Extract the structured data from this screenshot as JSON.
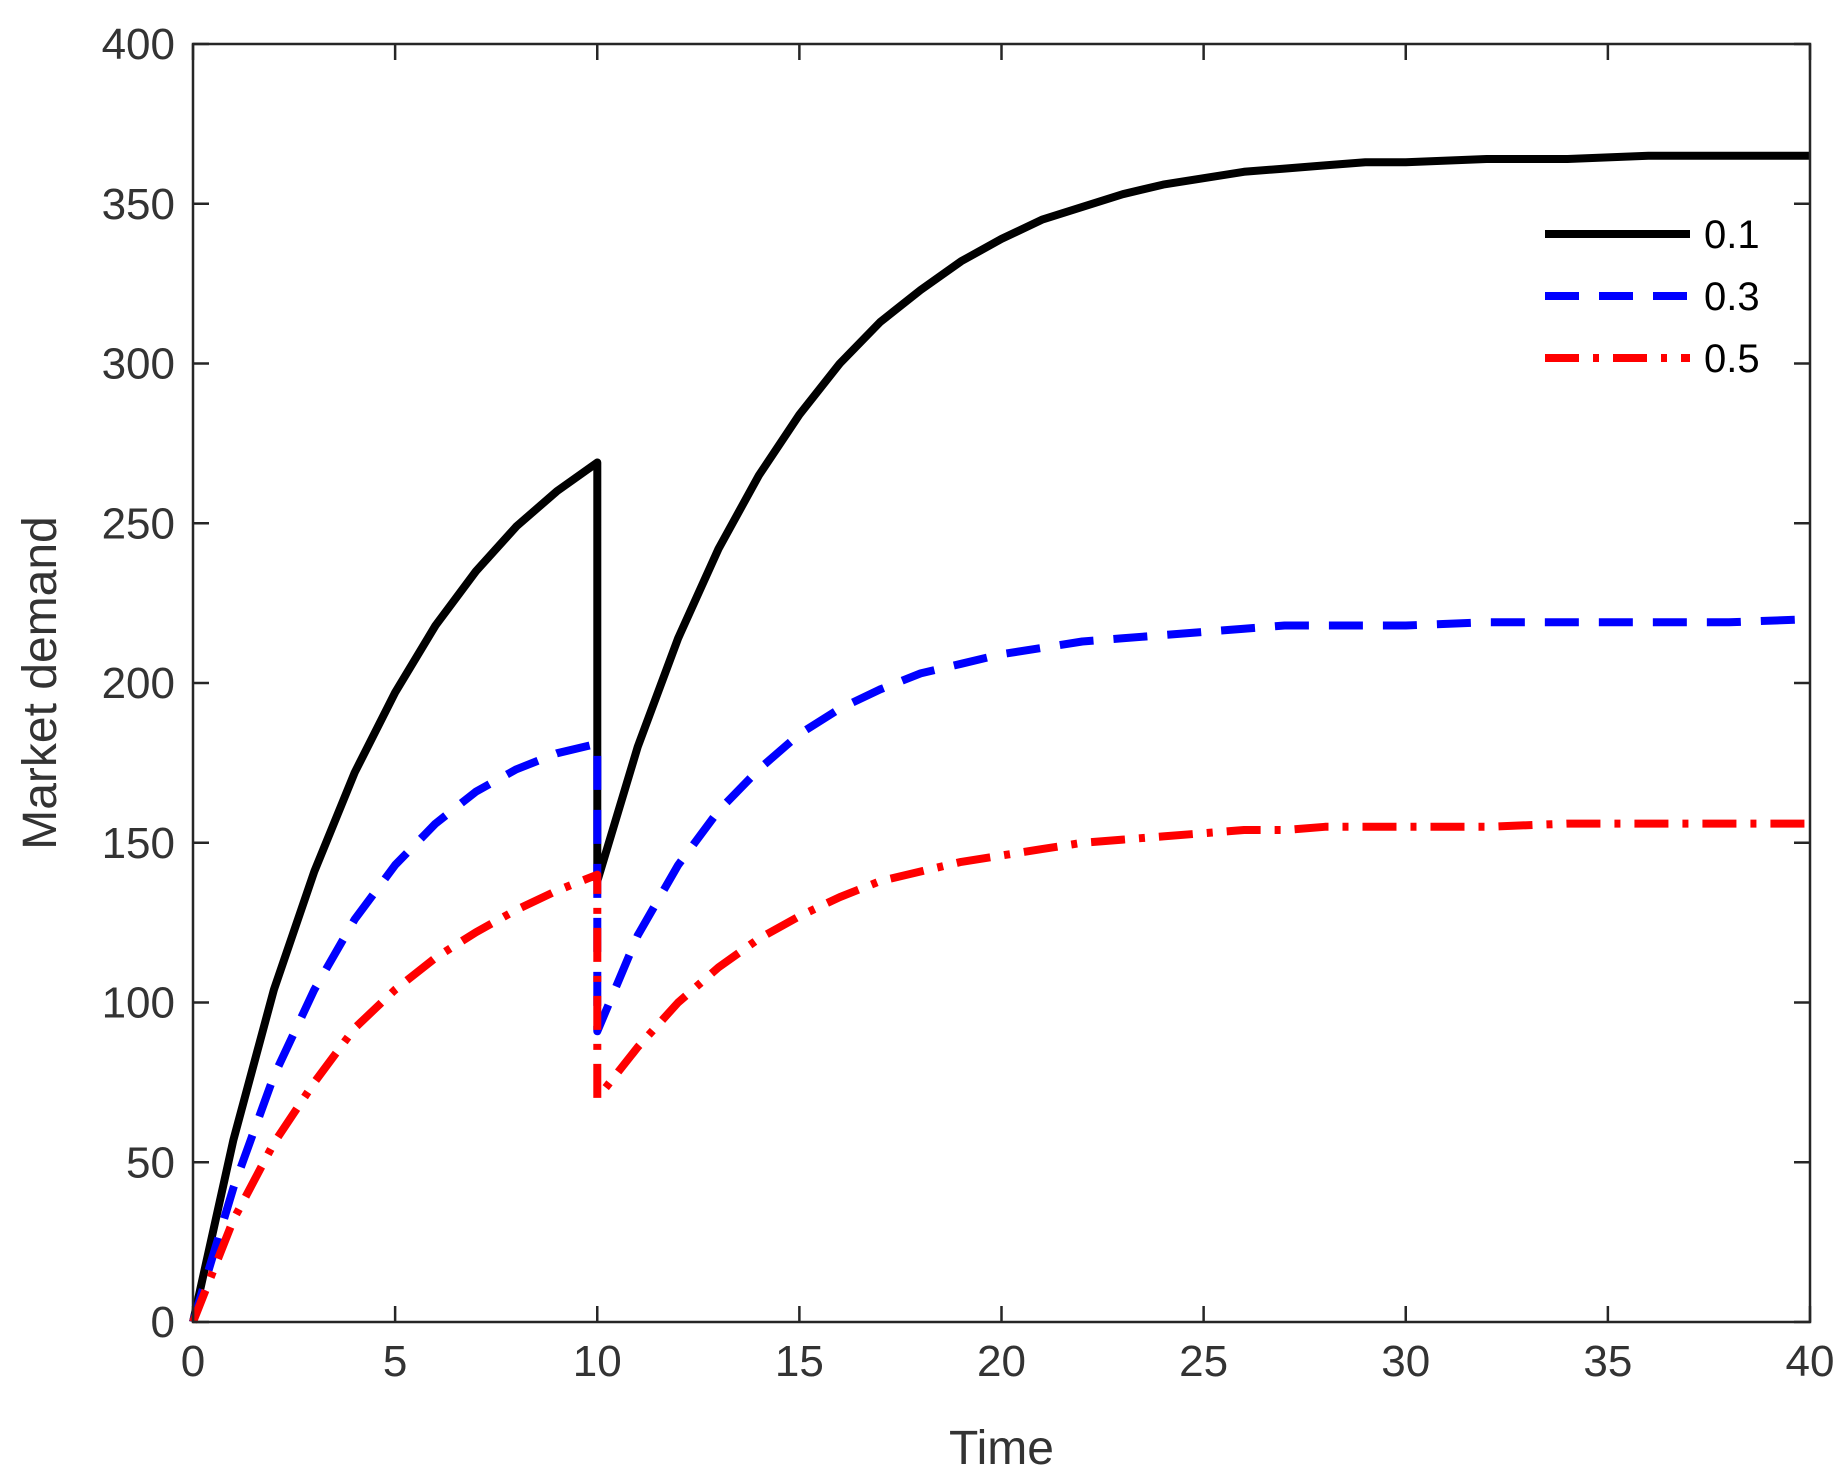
{
  "chart_data": {
    "type": "line",
    "xlabel": "Time",
    "ylabel": "Market demand",
    "xlim": [
      0,
      40
    ],
    "ylim": [
      0,
      400
    ],
    "x_ticks": [
      0,
      5,
      10,
      15,
      20,
      25,
      30,
      35,
      40
    ],
    "y_ticks": [
      0,
      50,
      100,
      150,
      200,
      250,
      300,
      350,
      400
    ],
    "grid": false,
    "legend_position": "top-right",
    "series": [
      {
        "name": "0.1",
        "color": "#000000",
        "style": "solid",
        "x": [
          0,
          1,
          2,
          3,
          4,
          5,
          6,
          7,
          8,
          9,
          10,
          10,
          11,
          12,
          13,
          14,
          15,
          16,
          17,
          18,
          19,
          20,
          21,
          22,
          23,
          24,
          25,
          26,
          27,
          28,
          29,
          30,
          32,
          34,
          36,
          38,
          40
        ],
        "y": [
          0,
          57,
          104,
          141,
          172,
          197,
          218,
          235,
          249,
          260,
          269,
          138,
          180,
          214,
          242,
          265,
          284,
          300,
          313,
          323,
          332,
          339,
          345,
          349,
          353,
          356,
          358,
          360,
          361,
          362,
          363,
          363,
          364,
          364,
          365,
          365,
          365
        ]
      },
      {
        "name": "0.3",
        "color": "#0000ff",
        "style": "dashed",
        "x": [
          0,
          1,
          2,
          3,
          4,
          5,
          6,
          7,
          8,
          9,
          10,
          10,
          11,
          12,
          13,
          14,
          15,
          16,
          17,
          18,
          19,
          20,
          21,
          22,
          23,
          24,
          25,
          26,
          27,
          28,
          29,
          30,
          32,
          34,
          36,
          38,
          40
        ],
        "y": [
          0,
          42,
          77,
          104,
          126,
          143,
          156,
          166,
          173,
          178,
          181,
          91,
          121,
          143,
          160,
          173,
          184,
          192,
          198,
          203,
          206,
          209,
          211,
          213,
          214,
          215,
          216,
          217,
          218,
          218,
          218,
          218,
          219,
          219,
          219,
          219,
          220
        ]
      },
      {
        "name": "0.5",
        "color": "#ff0000",
        "style": "dash-dot",
        "x": [
          0,
          1,
          2,
          3,
          4,
          5,
          6,
          7,
          8,
          9,
          10,
          10,
          11,
          12,
          13,
          14,
          15,
          16,
          17,
          18,
          19,
          20,
          21,
          22,
          23,
          24,
          25,
          26,
          27,
          28,
          29,
          30,
          32,
          34,
          36,
          38,
          40
        ],
        "y": [
          0,
          32,
          56,
          75,
          92,
          104,
          114,
          122,
          129,
          135,
          140,
          70,
          86,
          100,
          111,
          120,
          127,
          133,
          138,
          141,
          144,
          146,
          148,
          150,
          151,
          152,
          153,
          154,
          154,
          155,
          155,
          155,
          155,
          156,
          156,
          156,
          156
        ]
      }
    ]
  }
}
